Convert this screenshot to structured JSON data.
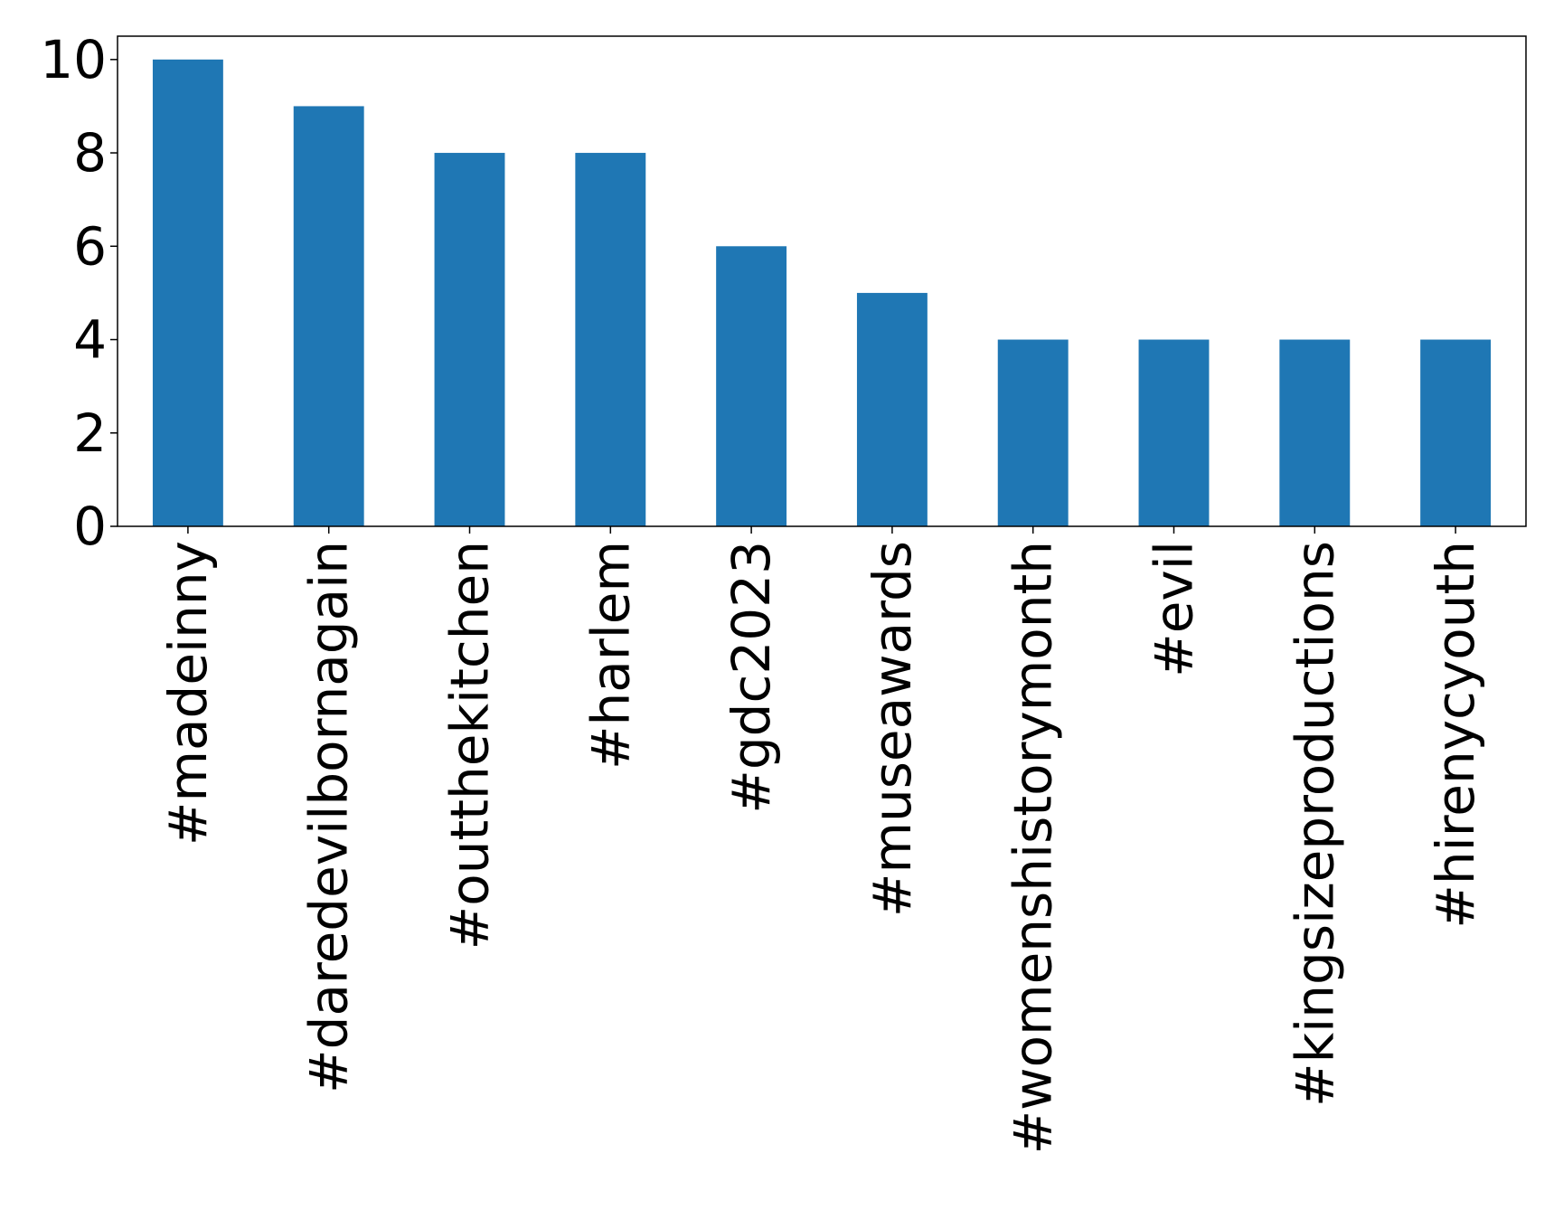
{
  "chart_data": {
    "type": "bar",
    "categories": [
      "#madeinny",
      "#daredevilbornagain",
      "#outthekitchen",
      "#harlem",
      "#gdc2023",
      "#museawards",
      "#womenshistorymonth",
      "#evil",
      "#kingsizeproductions",
      "#hirenycyouth"
    ],
    "values": [
      10,
      9,
      8,
      8,
      6,
      5,
      4,
      4,
      4,
      4
    ],
    "title": "",
    "xlabel": "",
    "ylabel": "",
    "ylim": [
      0,
      10.5
    ],
    "yticks": [
      0,
      2,
      4,
      6,
      8,
      10
    ],
    "bar_color": "#1f77b4",
    "grid": false,
    "legend": "none"
  }
}
